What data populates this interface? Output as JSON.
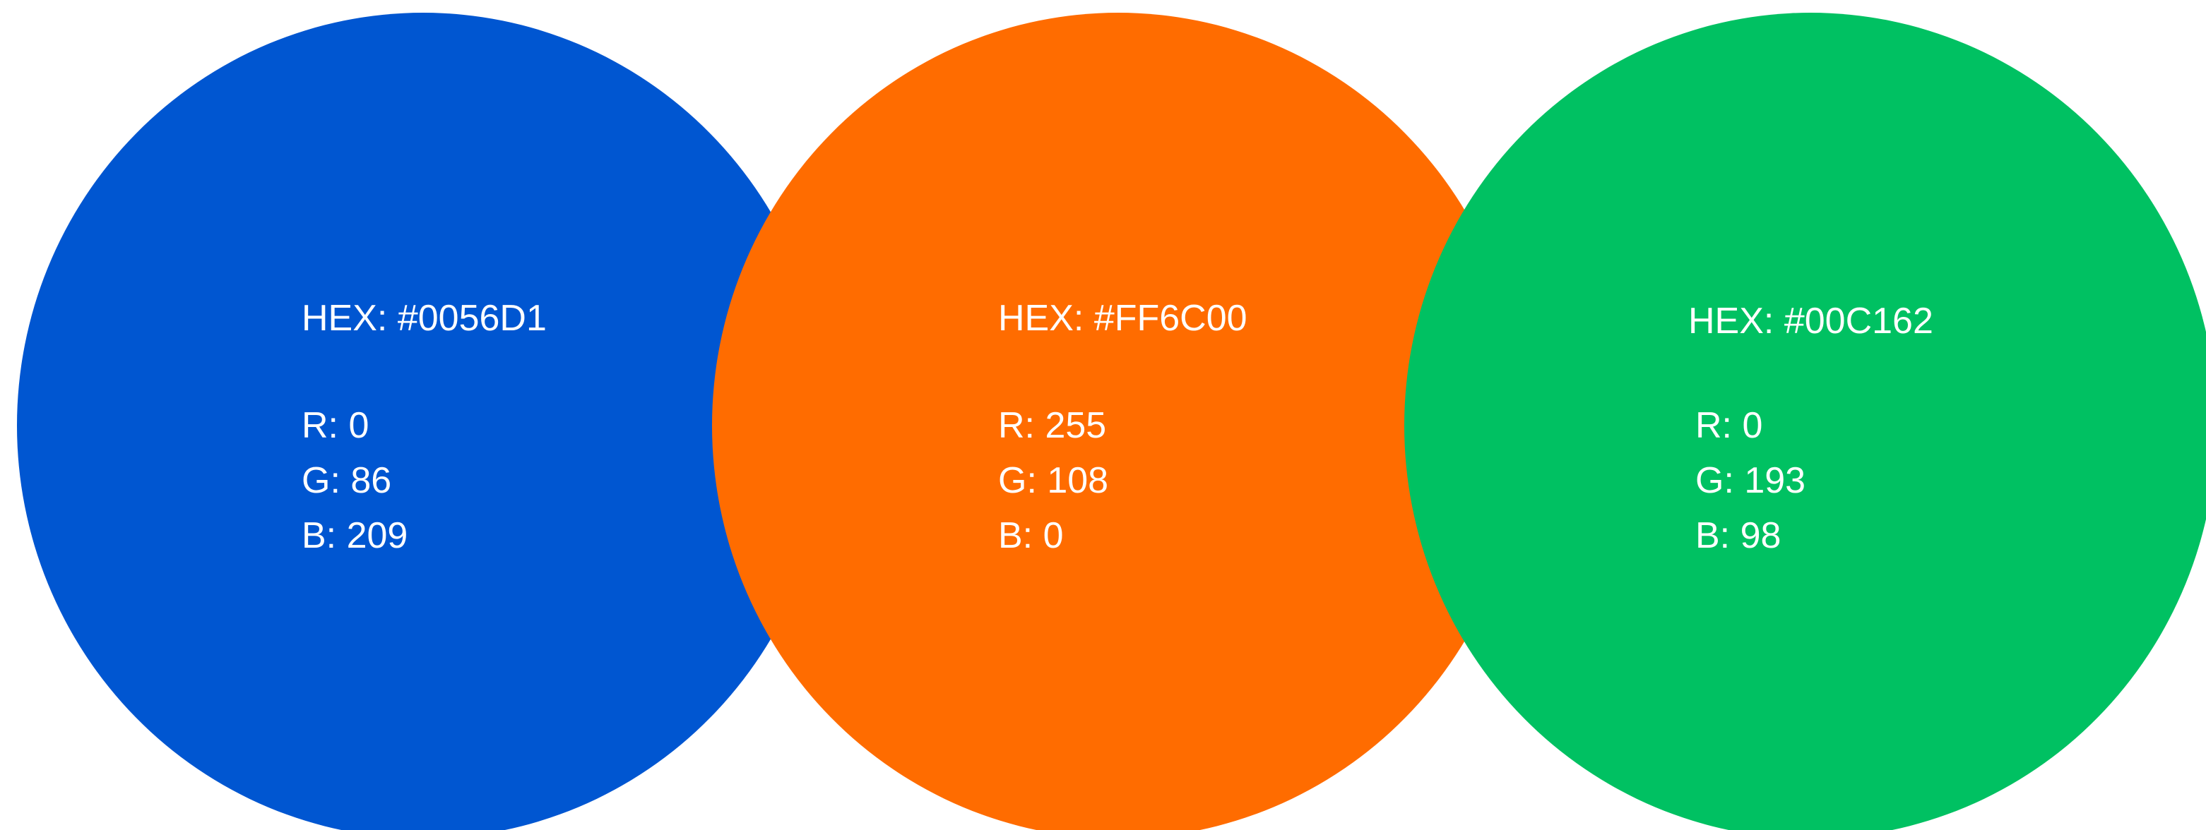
{
  "swatches": [
    {
      "name": "blue",
      "color": "#0056D1",
      "hex_label": "HEX: #0056D1",
      "r_label": "R: 0",
      "g_label": "G: 86",
      "b_label": "B: 209"
    },
    {
      "name": "orange",
      "color": "#FF6C00",
      "hex_label": "HEX: #FF6C00",
      "r_label": "R: 255",
      "g_label": "G: 108",
      "b_label": "B: 0"
    },
    {
      "name": "green",
      "color": "#00C162",
      "hex_label": "HEX: #00C162",
      "r_label": "R: 0",
      "g_label": "G: 193",
      "b_label": "B: 98"
    }
  ]
}
